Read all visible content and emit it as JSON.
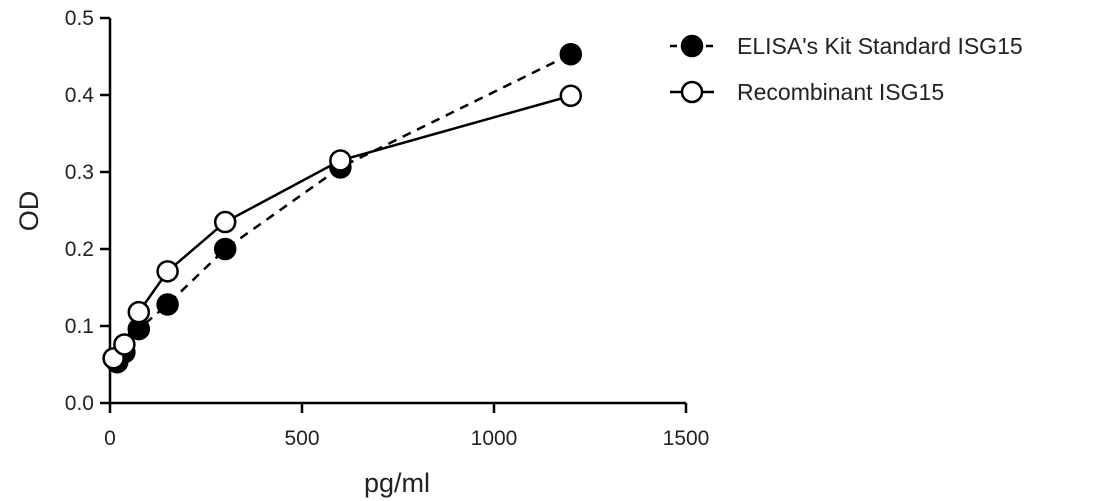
{
  "chart_data": {
    "type": "line",
    "title": "",
    "xlabel": "pg/ml",
    "ylabel": "OD",
    "xlim": [
      0,
      1500
    ],
    "ylim": [
      0,
      0.5
    ],
    "xticks": [
      0,
      500,
      1000,
      1500
    ],
    "yticks": [
      0.0,
      0.1,
      0.2,
      0.3,
      0.4,
      0.5
    ],
    "xtick_labels": [
      "0",
      "500",
      "1000",
      "1500"
    ],
    "ytick_labels": [
      "0.0",
      "0.1",
      "0.2",
      "0.3",
      "0.4",
      "0.5"
    ],
    "grid": false,
    "legend_position": "top-right, outside plot",
    "series": [
      {
        "name": "ELISA's Kit Standard ISG15",
        "marker": "filled-circle",
        "line_style": "dashed",
        "color": "#000000",
        "x": [
          18.75,
          37.5,
          75,
          150,
          300,
          600,
          1200
        ],
        "y": [
          0.053,
          0.066,
          0.096,
          0.128,
          0.2,
          0.306,
          0.453
        ]
      },
      {
        "name": "Recombinant ISG15",
        "marker": "open-circle",
        "line_style": "solid",
        "color": "#000000",
        "x": [
          9.4,
          37.5,
          75,
          150,
          300,
          600,
          1200
        ],
        "y": [
          0.058,
          0.076,
          0.118,
          0.171,
          0.235,
          0.315,
          0.399
        ]
      }
    ]
  }
}
